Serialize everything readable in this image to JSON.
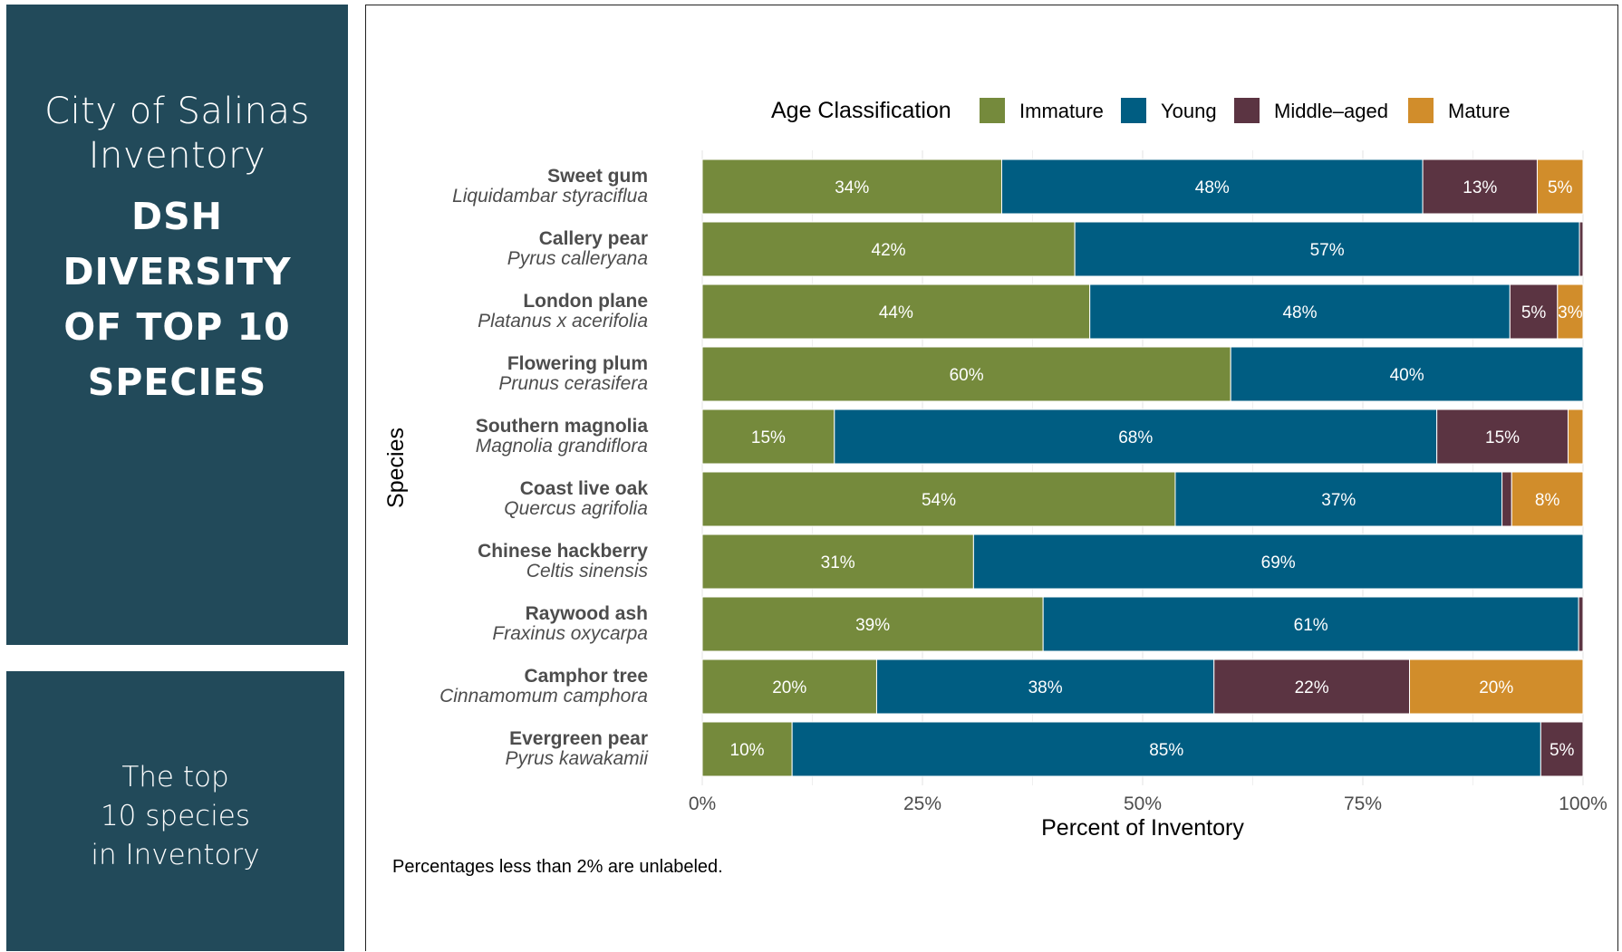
{
  "sidebar": {
    "title_light": [
      "City of Salinas",
      "Inventory"
    ],
    "title_bold": [
      "DSH",
      "DIVERSITY",
      "OF TOP 10",
      "SPECIES"
    ],
    "caption": [
      "The top",
      "10 species",
      "in Inventory"
    ]
  },
  "note": "Percentages less than 2% are unlabeled.",
  "chart_data": {
    "type": "bar",
    "orientation": "horizontal",
    "stacked": "percent",
    "xlabel": "Percent of Inventory",
    "ylabel": "Species",
    "xlim": [
      0,
      100
    ],
    "xticks": [
      "0%",
      "25%",
      "50%",
      "75%",
      "100%"
    ],
    "grid": true,
    "legend": {
      "title": "Age Classification",
      "placement": "top",
      "entries": [
        {
          "name": "Immature",
          "color": "#758a3c"
        },
        {
          "name": "Young",
          "color": "#005d82"
        },
        {
          "name": "Middle–aged",
          "color": "#5b3442"
        },
        {
          "name": "Mature",
          "color": "#d18d2b"
        }
      ]
    },
    "categories": [
      {
        "common": "Sweet gum",
        "scientific": "Liquidambar styraciflua"
      },
      {
        "common": "Callery pear",
        "scientific": "Pyrus calleryana"
      },
      {
        "common": "London plane",
        "scientific": "Platanus x acerifolia"
      },
      {
        "common": "Flowering plum",
        "scientific": "Prunus cerasifera"
      },
      {
        "common": "Southern magnolia",
        "scientific": "Magnolia grandiflora"
      },
      {
        "common": "Coast live oak",
        "scientific": "Quercus agrifolia"
      },
      {
        "common": "Chinese hackberry",
        "scientific": "Celtis sinensis"
      },
      {
        "common": "Raywood ash",
        "scientific": "Fraxinus oxycarpa"
      },
      {
        "common": "Camphor tree",
        "scientific": "Cinnamomum camphora"
      },
      {
        "common": "Evergreen pear",
        "scientific": "Pyrus kawakamii"
      }
    ],
    "series": [
      {
        "name": "Immature",
        "values": [
          34,
          42.3,
          44,
          60,
          15,
          53.7,
          30.8,
          38.7,
          19.8,
          10.2
        ]
      },
      {
        "name": "Young",
        "values": [
          47.8,
          57.3,
          47.7,
          40,
          68.4,
          37.1,
          69.2,
          60.8,
          38.3,
          85
        ]
      },
      {
        "name": "Middle–aged",
        "values": [
          13,
          0.4,
          5.4,
          0,
          14.9,
          1.1,
          0,
          0.5,
          22.2,
          4.8
        ]
      },
      {
        "name": "Mature",
        "values": [
          5.2,
          0,
          2.9,
          0,
          1.7,
          8.1,
          0,
          0,
          19.7,
          0
        ]
      }
    ]
  }
}
